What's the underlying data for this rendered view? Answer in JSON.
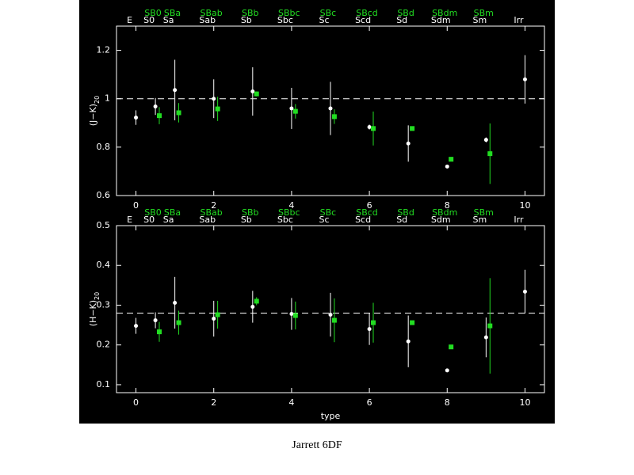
{
  "caption": "Jarrett  6DF",
  "chart_data": [
    {
      "type": "scatter",
      "ylabel": {
        "main": "(J−K)",
        "sub": "20"
      },
      "xlim": [
        -0.5,
        10.5
      ],
      "xticks": [
        0,
        2,
        4,
        6,
        8,
        10
      ],
      "ylim": [
        0.6,
        1.3
      ],
      "yticks": [
        0.6,
        0.8,
        1,
        1.2
      ],
      "hline": 1,
      "series": [
        {
          "color": "#ffffff",
          "marker": "circle",
          "x": [
            0,
            0.5,
            1,
            2,
            3,
            4,
            5,
            6,
            7,
            8,
            9,
            10
          ],
          "labels": [
            "E",
            "S0",
            "Sa",
            "Sab",
            "Sb",
            "Sbc",
            "Sc",
            "Scd",
            "Sd",
            "Sdm",
            "Sm",
            "Irr"
          ],
          "values": [
            0.922,
            0.968,
            1.036,
            1.0,
            1.03,
            0.96,
            0.96,
            0.883,
            0.815,
            0.72,
            0.83,
            1.08
          ],
          "errors": [
            0.03,
            0.035,
            0.125,
            0.08,
            0.1,
            0.085,
            0.11,
            0.01,
            0.075,
            0.005,
            0.01,
            0.1
          ]
        },
        {
          "color": "#22dd22",
          "marker": "square",
          "x": [
            0.6,
            1.1,
            2.1,
            3.1,
            4.1,
            5.1,
            6.1,
            7.1,
            8.1,
            9.1
          ],
          "labels": [
            "SB0",
            "SBa",
            "SBab",
            "SBb",
            "SBbc",
            "SBc",
            "SBcd",
            "SBd",
            "SBdm",
            "SBm"
          ],
          "values": [
            0.93,
            0.942,
            0.958,
            1.02,
            0.948,
            0.926,
            0.877,
            0.877,
            0.75,
            0.773
          ],
          "errors": [
            0.035,
            0.04,
            0.05,
            0.01,
            0.03,
            0.03,
            0.07,
            0,
            0,
            0.125
          ]
        }
      ]
    },
    {
      "type": "scatter",
      "xlabel": "type",
      "ylabel": {
        "main": "(H−K)",
        "sub": "20"
      },
      "xlim": [
        -0.5,
        10.5
      ],
      "xticks": [
        0,
        2,
        4,
        6,
        8,
        10
      ],
      "ylim": [
        0.08,
        0.5
      ],
      "yticks": [
        0.1,
        0.2,
        0.3,
        0.4,
        0.5
      ],
      "hline": 0.28,
      "series": [
        {
          "color": "#ffffff",
          "marker": "circle",
          "x": [
            0,
            0.5,
            1,
            2,
            3,
            4,
            5,
            6,
            7,
            8,
            9,
            10
          ],
          "labels": [
            "E",
            "S0",
            "Sa",
            "Sab",
            "Sb",
            "Sbc",
            "Sc",
            "Scd",
            "Sd",
            "Sdm",
            "Sm",
            "Irr"
          ],
          "values": [
            0.248,
            0.262,
            0.306,
            0.266,
            0.296,
            0.278,
            0.276,
            0.24,
            0.209,
            0.136,
            0.219,
            0.334
          ],
          "errors": [
            0.02,
            0.02,
            0.065,
            0.045,
            0.04,
            0.04,
            0.055,
            0.04,
            0.065,
            0,
            0.05,
            0.055
          ]
        },
        {
          "color": "#22dd22",
          "marker": "square",
          "x": [
            0.6,
            1.1,
            2.1,
            3.1,
            4.1,
            5.1,
            6.1,
            7.1,
            8.1,
            9.1
          ],
          "labels": [
            "SB0",
            "SBa",
            "SBab",
            "SBb",
            "SBbc",
            "SBc",
            "SBcd",
            "SBd",
            "SBdm",
            "SBm"
          ],
          "values": [
            0.233,
            0.256,
            0.276,
            0.31,
            0.274,
            0.262,
            0.256,
            0.256,
            0.195,
            0.248
          ],
          "errors": [
            0.025,
            0.03,
            0.035,
            0.01,
            0.035,
            0.055,
            0.05,
            0,
            0,
            0.12
          ]
        }
      ]
    }
  ]
}
